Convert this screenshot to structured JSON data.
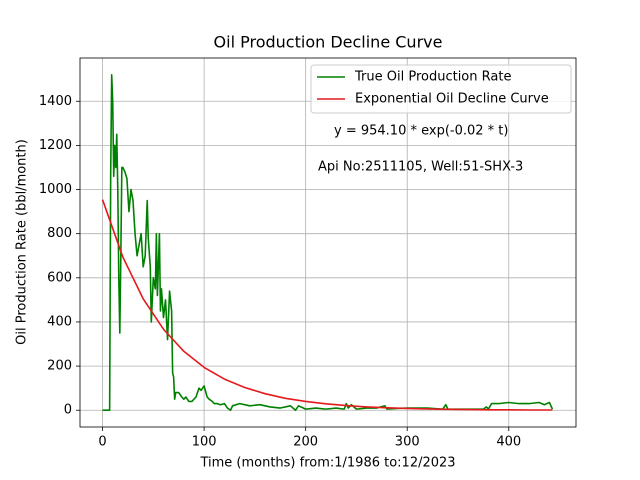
{
  "chart_data": {
    "type": "line",
    "title": "Oil Production Decline Curve",
    "xlabel": "Time (months) from:1/1986 to:12/2023",
    "ylabel": "Oil Production Rate (bbl/month)",
    "annotations": [
      "y = 954.10 * exp(-0.02 * t)",
      "Api No:2511105, Well:51-SHX-3"
    ],
    "xlim": [
      -22.2,
      466.2
    ],
    "xticks": [
      0,
      100,
      200,
      300,
      400
    ],
    "ylim": [
      -76,
      1596
    ],
    "yticks": [
      0,
      200,
      400,
      600,
      800,
      1000,
      1200,
      1400
    ],
    "grid": true,
    "legend": "upper right",
    "series": [
      {
        "name": "True Oil Production Rate",
        "color": "#008000",
        "x": [
          0,
          7,
          8,
          9,
          10,
          11,
          12,
          13,
          14,
          15,
          16,
          17,
          18,
          19,
          20,
          22,
          24,
          26,
          28,
          30,
          32,
          34,
          36,
          38,
          40,
          42,
          44,
          45,
          47,
          48,
          50,
          52,
          53,
          54,
          56,
          57,
          58,
          60,
          62,
          64,
          66,
          68,
          69,
          70,
          71,
          72,
          75,
          78,
          80,
          82,
          85,
          88,
          90,
          92,
          95,
          97,
          100,
          103,
          105,
          108,
          110,
          113,
          116,
          120,
          123,
          126,
          128,
          135,
          145,
          155,
          165,
          175,
          185,
          190,
          193,
          200,
          210,
          220,
          230,
          238,
          240,
          242,
          245,
          250,
          260,
          270,
          278,
          280,
          290,
          300,
          320,
          335,
          338,
          340,
          350,
          360,
          375,
          378,
          380,
          383,
          390,
          400,
          410,
          420,
          430,
          435,
          440,
          443
        ],
        "values": [
          0,
          0,
          1060,
          1520,
          1400,
          1060,
          1200,
          1100,
          1250,
          1000,
          600,
          350,
          700,
          1100,
          1100,
          1080,
          1050,
          900,
          1000,
          950,
          800,
          700,
          750,
          800,
          650,
          700,
          950,
          780,
          650,
          400,
          600,
          550,
          800,
          520,
          800,
          450,
          550,
          420,
          500,
          320,
          540,
          450,
          170,
          150,
          50,
          80,
          80,
          60,
          50,
          60,
          40,
          40,
          50,
          60,
          100,
          90,
          110,
          60,
          50,
          40,
          30,
          30,
          25,
          30,
          10,
          0,
          20,
          30,
          20,
          25,
          15,
          10,
          20,
          0,
          20,
          5,
          10,
          5,
          10,
          5,
          30,
          10,
          25,
          5,
          10,
          10,
          20,
          5,
          8,
          10,
          10,
          5,
          25,
          5,
          5,
          5,
          5,
          15,
          5,
          30,
          30,
          35,
          30,
          30,
          35,
          25,
          35,
          5
        ]
      },
      {
        "name": "Exponential Oil Decline Curve",
        "color": "#e41a1c",
        "x": [
          0,
          20,
          40,
          60,
          80,
          100,
          120,
          140,
          160,
          180,
          200,
          220,
          240,
          260,
          280,
          300,
          320,
          340,
          360,
          380,
          400,
          420,
          443
        ],
        "values": [
          954,
          694,
          505,
          367,
          267,
          194,
          141,
          103,
          75,
          54,
          40,
          29,
          21,
          15,
          11,
          8,
          6,
          4,
          3,
          2,
          2,
          1,
          1
        ]
      }
    ]
  }
}
